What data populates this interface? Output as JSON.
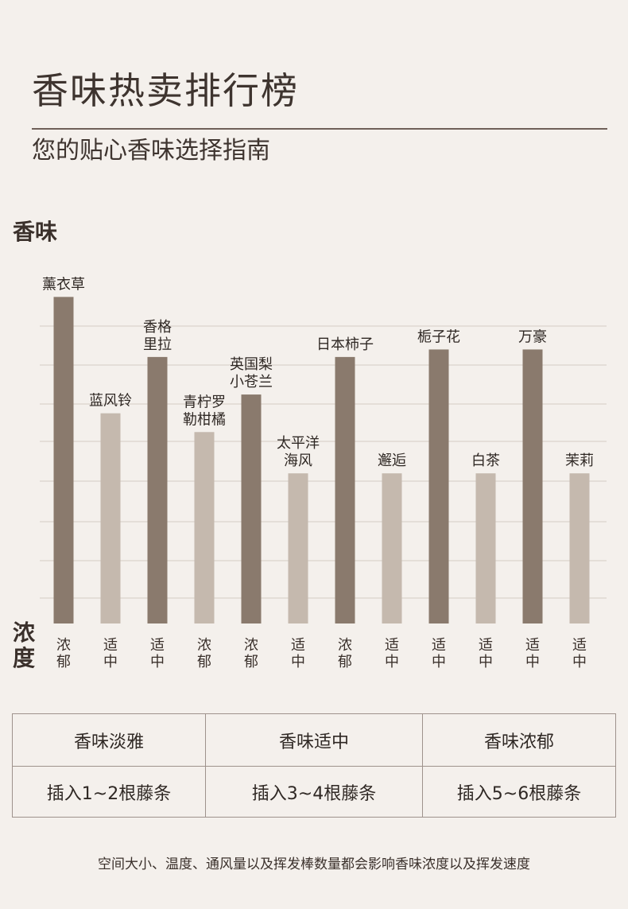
{
  "header": {
    "title": "香味热卖排行榜",
    "subtitle": "您的贴心香味选择指南"
  },
  "chart_data": {
    "type": "bar",
    "ylabel": "香味",
    "xlabel": "浓度",
    "grid": true,
    "categories": [
      "薰衣草",
      "蓝风铃",
      "香格里拉",
      "青柠罗勒柑橘",
      "英国梨小苍兰",
      "太平洋海风",
      "日本柿子",
      "邂逅",
      "栀子花",
      "白茶",
      "万豪",
      "茉莉"
    ],
    "label_lines": [
      [
        "薰衣草"
      ],
      [
        "蓝风铃"
      ],
      [
        "香格",
        "里拉"
      ],
      [
        "青柠罗",
        "勒柑橘"
      ],
      [
        "英国梨",
        "小苍兰"
      ],
      [
        "太平洋",
        "海风"
      ],
      [
        "日本柿子"
      ],
      [
        "邂逅"
      ],
      [
        "栀子花"
      ],
      [
        "白茶"
      ],
      [
        "万豪"
      ],
      [
        "茉莉"
      ]
    ],
    "intensity": [
      "浓郁",
      "适中",
      "适中",
      "浓郁",
      "浓郁",
      "适中",
      "浓郁",
      "适中",
      "适中",
      "适中",
      "适中",
      "适中"
    ],
    "values": [
      8.7,
      5.6,
      7.1,
      5.1,
      6.1,
      4.0,
      7.1,
      4.0,
      7.3,
      4.0,
      7.3,
      4.0
    ],
    "ylim": [
      0,
      10
    ],
    "colors": {
      "dark": "#8a7a6d",
      "light": "#c5b9ae",
      "grid": "#d3cbc4"
    },
    "bar_color_pattern": [
      "dark",
      "light",
      "dark",
      "light",
      "dark",
      "light",
      "dark",
      "light",
      "dark",
      "light",
      "dark",
      "light"
    ]
  },
  "table": {
    "headers": [
      "香味淡雅",
      "香味适中",
      "香味浓郁"
    ],
    "rows": [
      [
        "插入1~2根藤条",
        "插入3~4根藤条",
        "插入5~6根藤条"
      ]
    ]
  },
  "footnote": "空间大小、温度、通风量以及挥发棒数量都会影响香味浓度以及挥发速度"
}
